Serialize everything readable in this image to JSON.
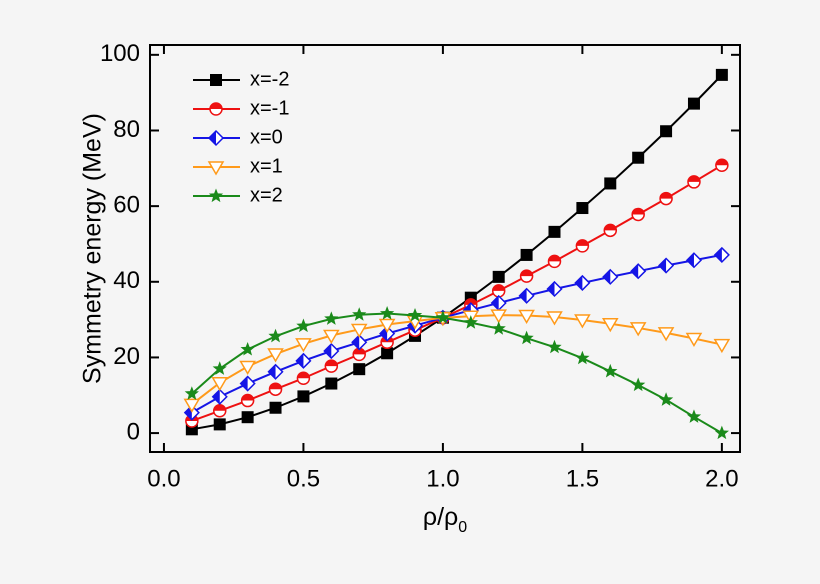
{
  "chart_data": {
    "type": "line",
    "ylabel": "Symmetry energy (MeV)",
    "xlabel": {
      "text": "ρ/ρ",
      "subscript": "0"
    },
    "x": [
      0.1,
      0.2,
      0.3,
      0.4,
      0.5,
      0.6,
      0.7,
      0.8,
      0.9,
      1.0,
      1.1,
      1.2,
      1.3,
      1.4,
      1.5,
      1.6,
      1.7,
      1.8,
      1.9,
      2.0
    ],
    "series": [
      {
        "name": "x=-2",
        "color": "#000000",
        "marker": "square",
        "values": [
          1.0,
          2.3,
          4.2,
          6.7,
          9.7,
          13.1,
          16.9,
          21.1,
          25.7,
          30.5,
          35.8,
          41.3,
          47.1,
          53.2,
          59.5,
          66.0,
          72.8,
          79.8,
          87.1,
          94.7
        ]
      },
      {
        "name": "x=-1",
        "color": "#ee1111",
        "marker": "half-circle",
        "values": [
          3.2,
          5.9,
          8.6,
          11.6,
          14.5,
          17.7,
          20.8,
          24.0,
          27.2,
          30.5,
          33.9,
          37.6,
          41.5,
          45.4,
          49.5,
          53.6,
          57.8,
          62.0,
          66.4,
          70.8
        ]
      },
      {
        "name": "x=0",
        "color": "#1515e6",
        "marker": "half-diamond",
        "values": [
          5.4,
          9.6,
          13.1,
          16.2,
          19.1,
          21.7,
          24.0,
          26.3,
          28.4,
          30.5,
          32.5,
          34.4,
          36.3,
          38.1,
          39.7,
          41.3,
          42.8,
          44.3,
          45.7,
          47.1
        ]
      },
      {
        "name": "x=1",
        "color": "#ff9a1a",
        "marker": "open-triangle-down",
        "values": [
          7.6,
          13.3,
          17.6,
          20.9,
          23.6,
          25.8,
          27.4,
          28.7,
          29.6,
          30.5,
          30.9,
          31.2,
          31.1,
          30.7,
          29.9,
          28.9,
          27.8,
          26.5,
          25.0,
          23.4
        ]
      },
      {
        "name": "x=2",
        "color": "#1a8a1a",
        "marker": "star",
        "values": [
          10.4,
          17.0,
          22.1,
          25.6,
          28.3,
          30.2,
          31.3,
          31.6,
          31.1,
          30.5,
          29.2,
          27.6,
          25.1,
          22.7,
          19.8,
          16.3,
          12.7,
          8.8,
          4.3,
          0.0
        ]
      }
    ],
    "xlim": [
      -0.05,
      2.065
    ],
    "ylim": [
      -5,
      102.6
    ],
    "xticks": [
      {
        "value": 0,
        "label": "0.0"
      },
      {
        "value": 0.5,
        "label": "0.5"
      },
      {
        "value": 1,
        "label": "1.0"
      },
      {
        "value": 1.5,
        "label": "1.5"
      },
      {
        "value": 2,
        "label": "2.0"
      }
    ],
    "yticks": [
      0,
      20,
      40,
      60,
      80,
      100
    ],
    "legend": "upper-left"
  }
}
